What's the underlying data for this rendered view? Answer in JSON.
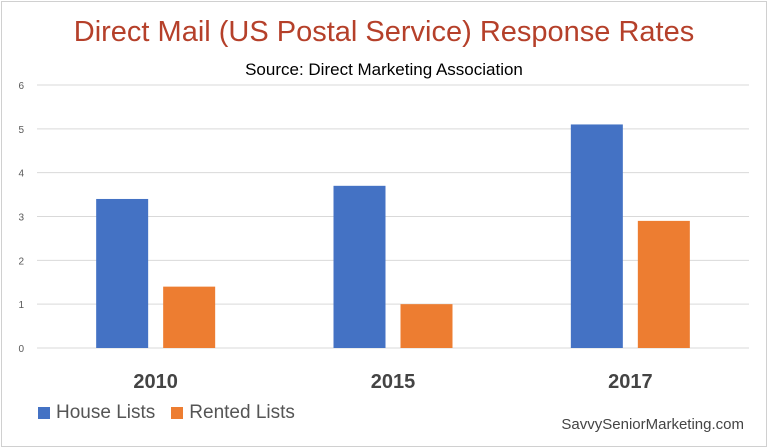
{
  "chart_data": {
    "type": "bar",
    "title": "Direct Mail (US Postal Service) Response Rates",
    "subtitle": "Source: Direct Marketing Association",
    "categories": [
      "2010",
      "2015",
      "2017"
    ],
    "series": [
      {
        "name": "House Lists",
        "color": "#4472c4",
        "values": [
          3.4,
          3.7,
          5.1
        ]
      },
      {
        "name": "Rented Lists",
        "color": "#ed7d31",
        "values": [
          1.4,
          1.0,
          2.9
        ]
      }
    ],
    "ylim": [
      0,
      6
    ],
    "yticks": [
      "0",
      "1",
      "2",
      "3",
      "4",
      "5",
      "6"
    ],
    "grid": true,
    "legend": "bottom-left"
  },
  "credit": "SavvySeniorMarketing.com"
}
